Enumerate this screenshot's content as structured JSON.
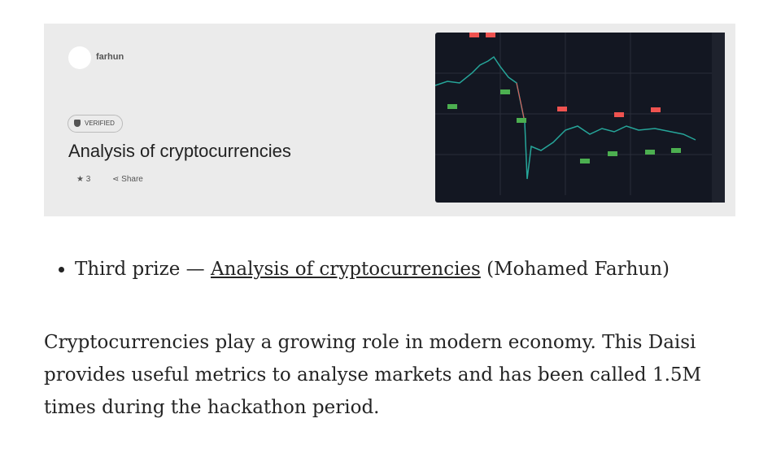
{
  "card": {
    "author": "farhun",
    "badge": "VERIFIED",
    "title": "Analysis of cryptocurrencies",
    "stars": 3,
    "share": "Share"
  },
  "list": {
    "items": [
      {
        "prefix": "Third prize — ",
        "link": "Analysis of cryptocurrencies",
        "suffix": " (Mohamed Farhun)"
      }
    ]
  },
  "paragraph": "Cryptocurrencies play a growing role in modern economy. This Daisi provides useful metrics to analyse markets and has been called 1.5M times during the hackathon period."
}
